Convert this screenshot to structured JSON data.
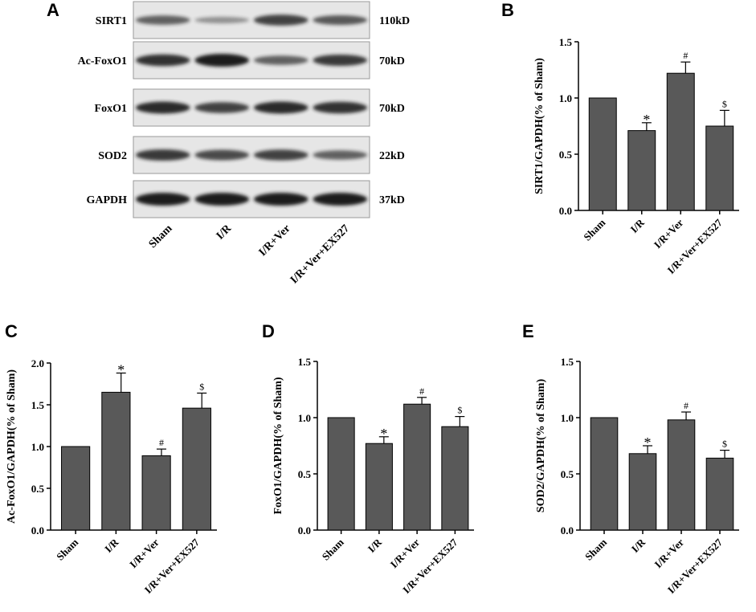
{
  "panel_labels": [
    "A",
    "B",
    "C",
    "D",
    "E"
  ],
  "western_blot": {
    "rows": [
      {
        "protein": "SIRT1",
        "size": "110kD",
        "intensity": [
          0.55,
          0.22,
          0.75,
          0.6
        ]
      },
      {
        "protein": "Ac-FoxO1",
        "size": "70kD",
        "intensity": [
          0.85,
          1.0,
          0.55,
          0.8
        ]
      },
      {
        "protein": "FoxO1",
        "size": "70kD",
        "intensity": [
          0.9,
          0.75,
          0.9,
          0.85
        ]
      },
      {
        "protein": "SOD2",
        "size": "22kD",
        "intensity": [
          0.8,
          0.7,
          0.75,
          0.55
        ]
      },
      {
        "protein": "GAPDH",
        "size": "37kD",
        "intensity": [
          1.0,
          1.0,
          1.0,
          1.0
        ]
      }
    ],
    "lanes": [
      "Sham",
      "I/R",
      "I/R+Ver",
      "I/R+Ver+EX527"
    ]
  },
  "colors": {
    "bar": "#595959",
    "axis": "#000000",
    "band": "#1a1a1a",
    "blot_bg": "#e6e6e6"
  },
  "chart_data": [
    {
      "panel": "B",
      "type": "bar",
      "categories": [
        "Sham",
        "I/R",
        "I/R+Ver",
        "I/R+Ver+EX527"
      ],
      "values": [
        1.0,
        0.71,
        1.22,
        0.75
      ],
      "errors": [
        0,
        0.07,
        0.1,
        0.14
      ],
      "annotations": [
        "",
        "*",
        "#",
        "$"
      ],
      "ylabel": "SIRT1/GAPDH(% of Sham)",
      "ylim": [
        0,
        1.5
      ],
      "yticks": [
        "0.0",
        "0.5",
        "1.0",
        "1.5"
      ]
    },
    {
      "panel": "C",
      "type": "bar",
      "categories": [
        "Sham",
        "I/R",
        "I/R+Ver",
        "I/R+Ver+EX527"
      ],
      "values": [
        1.0,
        1.65,
        0.89,
        1.46
      ],
      "errors": [
        0,
        0.23,
        0.08,
        0.18
      ],
      "annotations": [
        "",
        "*",
        "#",
        "$"
      ],
      "ylabel": "Ac-FoxO1/GAPDH(% of Sham)",
      "ylim": [
        0,
        2.0
      ],
      "yticks": [
        "0.0",
        "0.5",
        "1.0",
        "1.5",
        "2.0"
      ]
    },
    {
      "panel": "D",
      "type": "bar",
      "categories": [
        "Sham",
        "I/R",
        "I/R+Ver",
        "I/R+Ver+EX527"
      ],
      "values": [
        1.0,
        0.77,
        1.12,
        0.92
      ],
      "errors": [
        0,
        0.06,
        0.06,
        0.09
      ],
      "annotations": [
        "",
        "*",
        "#",
        "$"
      ],
      "ylabel": "FoxO1/GAPDH(% of Sham)",
      "ylim": [
        0,
        1.5
      ],
      "yticks": [
        "0.0",
        "0.5",
        "1.0",
        "1.5"
      ]
    },
    {
      "panel": "E",
      "type": "bar",
      "categories": [
        "Sham",
        "I/R",
        "I/R+Ver",
        "I/R+Ver+EX527"
      ],
      "values": [
        1.0,
        0.68,
        0.98,
        0.64
      ],
      "errors": [
        0,
        0.07,
        0.07,
        0.07
      ],
      "annotations": [
        "",
        "*",
        "#",
        "$"
      ],
      "ylabel": "SOD2/GAPDH(% of Sham)",
      "ylim": [
        0,
        1.5
      ],
      "yticks": [
        "0.0",
        "0.5",
        "1.0",
        "1.5"
      ]
    }
  ]
}
